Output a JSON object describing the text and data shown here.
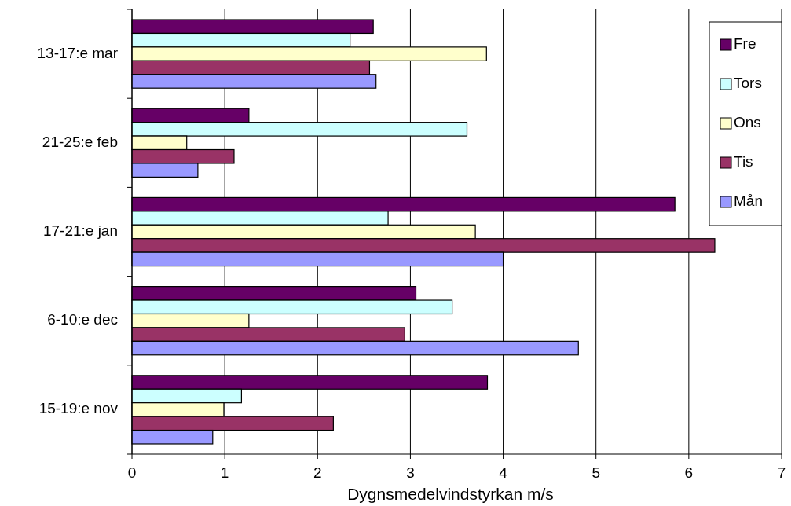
{
  "chart_data": {
    "type": "bar",
    "orientation": "horizontal",
    "xlabel": "Dygnsmedelvindstyrkan m/s",
    "categories": [
      "13-17:e mar",
      "21-25:e feb",
      "17-21:e jan",
      "6-10:e dec",
      "15-19:e nov"
    ],
    "series": [
      {
        "name": "Fre",
        "color": "#660066",
        "values": [
          2.6,
          1.26,
          5.85,
          3.06,
          3.83
        ]
      },
      {
        "name": "Tors",
        "color": "#ccffff",
        "values": [
          2.35,
          3.61,
          2.76,
          3.45,
          1.18
        ]
      },
      {
        "name": "Ons",
        "color": "#ffffcc",
        "values": [
          3.82,
          0.59,
          3.7,
          1.26,
          0.99
        ]
      },
      {
        "name": "Tis",
        "color": "#993366",
        "values": [
          2.56,
          1.1,
          6.28,
          2.94,
          2.17
        ]
      },
      {
        "name": "Mån",
        "color": "#9999ff",
        "values": [
          2.63,
          0.71,
          4.0,
          4.81,
          0.87
        ]
      }
    ],
    "xlim": [
      0,
      7
    ],
    "xticks": [
      0,
      1,
      2,
      3,
      4,
      5,
      6,
      7
    ],
    "grid": "x",
    "legend": "top right"
  }
}
